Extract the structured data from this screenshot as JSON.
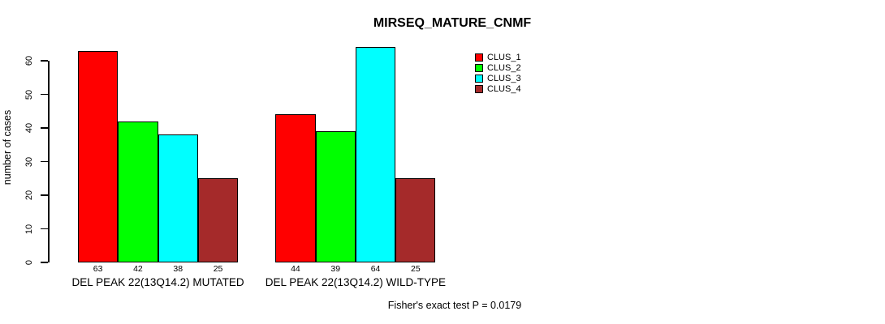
{
  "chart_data": {
    "type": "bar",
    "title": "MIRSEQ_MATURE_CNMF",
    "ylabel": "number of cases",
    "xlabel": "",
    "yticks": [
      0,
      10,
      20,
      30,
      40,
      50,
      60
    ],
    "ylim": [
      0,
      64
    ],
    "grid": false,
    "legend_position": "right",
    "categories": [
      "DEL PEAK 22(13Q14.2) MUTATED",
      "DEL PEAK 22(13Q14.2) WILD-TYPE"
    ],
    "series": [
      {
        "name": "CLUS_1",
        "color": "#FF0000",
        "values": [
          63,
          44
        ]
      },
      {
        "name": "CLUS_2",
        "color": "#00FF00",
        "values": [
          42,
          39
        ]
      },
      {
        "name": "CLUS_3",
        "color": "#00FFFF",
        "values": [
          38,
          64
        ]
      },
      {
        "name": "CLUS_4",
        "color": "#A52A2A",
        "values": [
          25,
          25
        ]
      }
    ],
    "annotation": "Fisher's exact test P = 0.0179"
  }
}
